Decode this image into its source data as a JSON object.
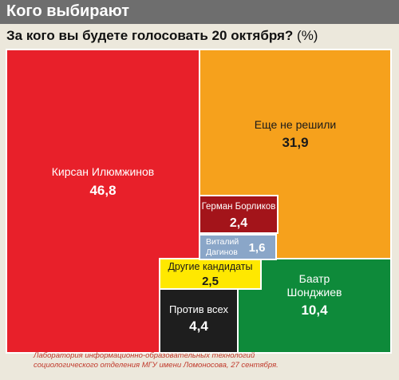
{
  "header": {
    "title": "Кого выбирают"
  },
  "subtitle": {
    "question": "За кого вы будете голосовать 20 октября?",
    "unit": "(%)"
  },
  "footnote": {
    "line1": "Лаборатория информационно-образовательных технологий",
    "line2": "социологического отделения МГУ имени Ломоносова, 27 сентября."
  },
  "chart_data": {
    "type": "treemap",
    "title": "За кого вы будете голосовать 20 октября?",
    "unit": "%",
    "items": [
      {
        "label_lines": [
          "Кирсан Илюмжинов"
        ],
        "value": 46.8,
        "value_text": "46,8",
        "color": "#e8202a",
        "text_color": "#ffffff"
      },
      {
        "label_lines": [
          "Еще не решили"
        ],
        "value": 31.9,
        "value_text": "31,9",
        "color": "#f6a11c",
        "text_color": "#1a1a1a"
      },
      {
        "label_lines": [
          "Герман Борликов"
        ],
        "value": 2.4,
        "value_text": "2,4",
        "color": "#a3141a",
        "text_color": "#ffffff"
      },
      {
        "label_lines": [
          "Виталий",
          "Дагинов"
        ],
        "value": 1.6,
        "value_text": "1,6",
        "color": "#8aa6c8",
        "text_color": "#ffffff"
      },
      {
        "label_lines": [
          "Другие кандидаты"
        ],
        "value": 2.5,
        "value_text": "2,5",
        "color": "#ffe800",
        "text_color": "#1a1a1a"
      },
      {
        "label_lines": [
          "Баатр",
          "Шонджиев"
        ],
        "value": 10.4,
        "value_text": "10,4",
        "color": "#0e8a3a",
        "text_color": "#ffffff"
      },
      {
        "label_lines": [
          "Против всех"
        ],
        "value": 4.4,
        "value_text": "4,4",
        "color": "#1e1e1e",
        "text_color": "#ffffff"
      }
    ]
  }
}
